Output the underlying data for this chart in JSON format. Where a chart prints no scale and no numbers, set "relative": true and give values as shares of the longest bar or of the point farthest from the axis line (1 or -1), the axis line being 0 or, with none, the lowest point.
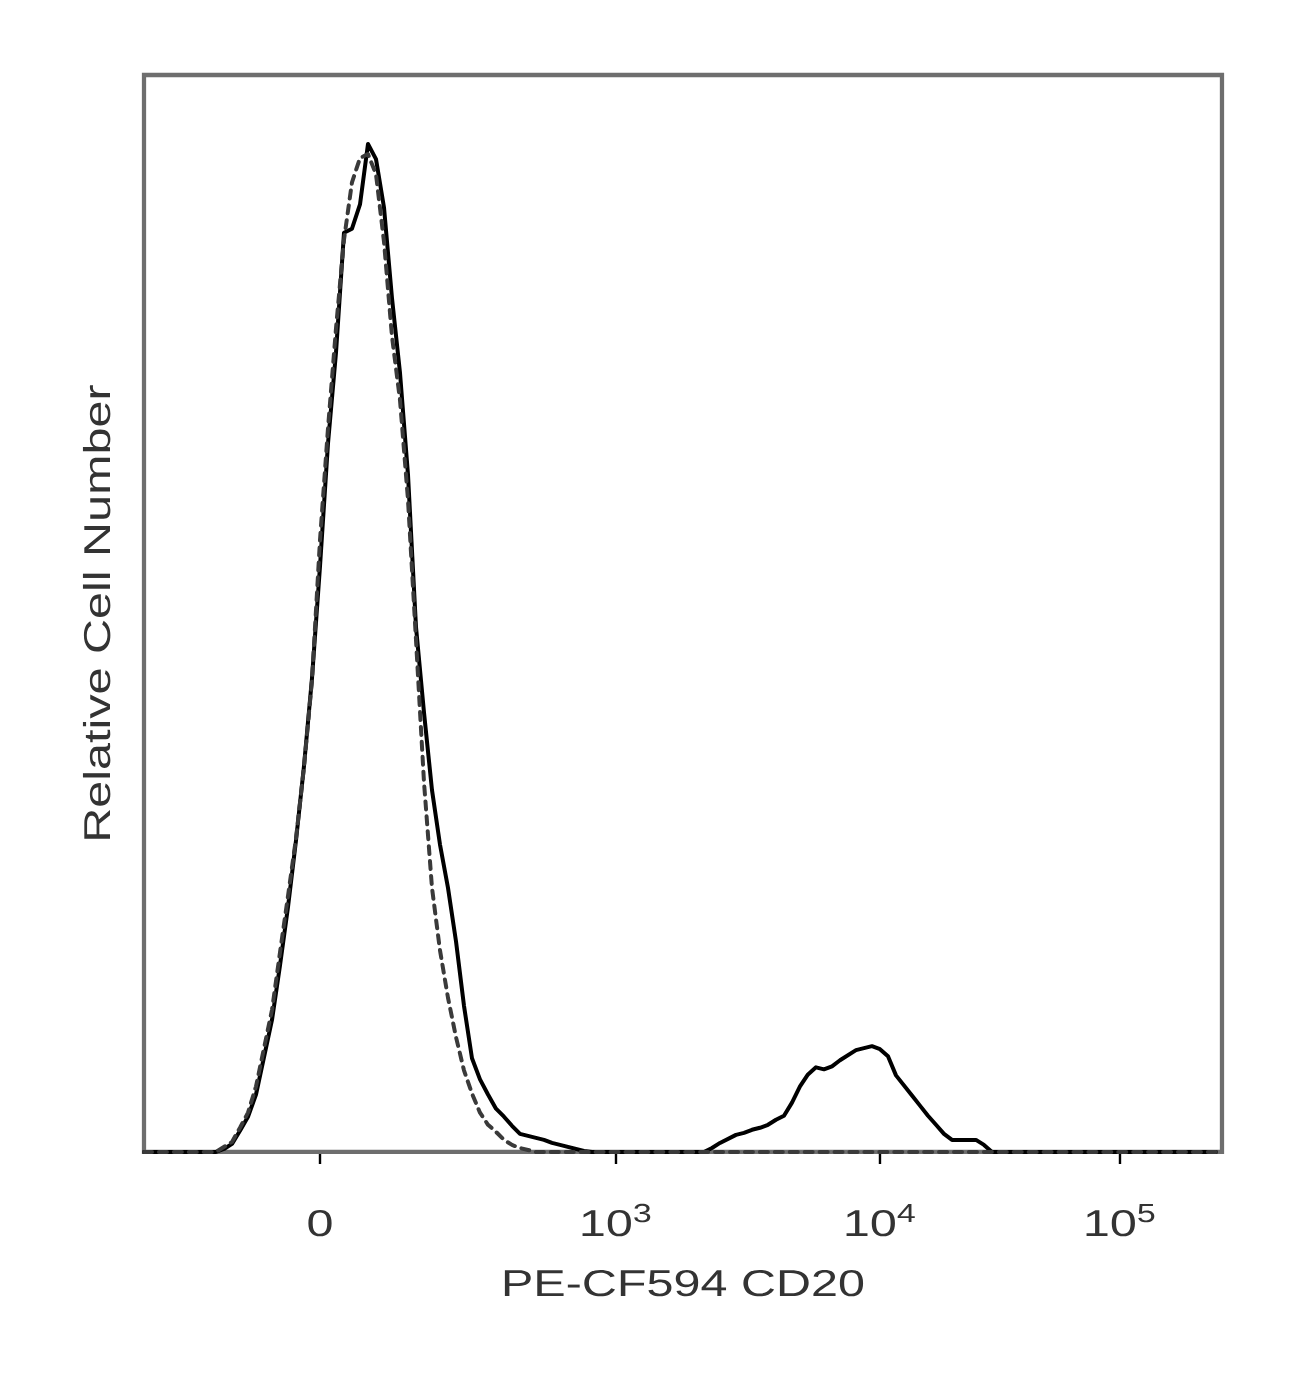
{
  "chart_data": {
    "type": "line",
    "relative": true,
    "xlabel": "PE-CF594 CD20",
    "ylabel": "Relative Cell Number",
    "tick_labels": "x",
    "categories": [
      null,
      null,
      null,
      null,
      null,
      null,
      null,
      null,
      null,
      null,
      null,
      null,
      null,
      null,
      null,
      null,
      null,
      null,
      null,
      null,
      null,
      null,
      "0",
      null,
      null,
      null,
      null,
      null,
      null,
      null,
      null,
      null,
      null,
      null,
      null,
      null,
      null,
      null,
      null,
      null,
      null,
      null,
      null,
      null,
      null,
      null,
      null,
      null,
      null,
      null,
      null,
      null,
      null,
      null,
      null,
      null,
      null,
      null,
      null,
      "10$^{3}$",
      null,
      null,
      null,
      null,
      null,
      null,
      null,
      null,
      null,
      null,
      null,
      null,
      null,
      null,
      null,
      null,
      null,
      null,
      null,
      null,
      null,
      null,
      null,
      null,
      null,
      null,
      null,
      null,
      null,
      null,
      null,
      null,
      "10$^{4}$",
      null,
      null,
      null,
      null,
      null,
      null,
      null,
      null,
      null,
      null,
      null,
      null,
      null,
      null,
      null,
      null,
      null,
      null,
      null,
      null,
      null,
      null,
      null,
      null,
      null,
      null,
      null,
      null,
      null,
      "10$^{5}$",
      null,
      null,
      null,
      null,
      null,
      null,
      null,
      null,
      null,
      null,
      null,
      null
    ],
    "series": [
      {
        "color": "#000000",
        "line_style": "solid",
        "values": [
          0,
          0,
          0,
          0,
          0,
          0,
          0,
          0,
          0,
          0,
          0.003,
          0.008,
          0.021,
          0.035,
          0.057,
          0.094,
          0.131,
          0.185,
          0.243,
          0.309,
          0.383,
          0.47,
          0.581,
          0.703,
          0.793,
          0.912,
          0.916,
          0.94,
          1,
          0.985,
          0.937,
          0.847,
          0.773,
          0.672,
          0.521,
          0.436,
          0.359,
          0.305,
          0.262,
          0.209,
          0.145,
          0.093,
          0.072,
          0.057,
          0.043,
          0.035,
          0.026,
          0.018,
          0.016,
          0.014,
          0.012,
          0.009,
          0.007,
          0.005,
          0.003,
          0.001,
          0,
          0,
          0,
          0,
          0,
          0,
          0,
          0,
          0,
          0,
          0,
          0,
          0,
          0,
          0,
          0.004,
          0.009,
          0.013,
          0.017,
          0.019,
          0.022,
          0.024,
          0.027,
          0.032,
          0.036,
          0.049,
          0.065,
          0.077,
          0.084,
          0.082,
          0.085,
          0.091,
          0.096,
          0.101,
          0.103,
          0.105,
          0.102,
          0.095,
          0.076,
          0.066,
          0.056,
          0.046,
          0.036,
          0.027,
          0.018,
          0.012,
          0.012,
          0.012,
          0.012,
          0.007,
          0,
          0,
          0,
          0,
          0,
          0,
          0,
          0,
          0,
          0,
          0,
          0,
          0,
          0,
          0,
          0,
          0,
          0,
          0,
          0,
          0,
          0,
          0,
          0,
          0,
          0,
          0,
          0,
          0
        ]
      },
      {
        "color": "#3a3a3a",
        "line_style": "dashed",
        "values": [
          0,
          0,
          0,
          0,
          0,
          0,
          0,
          0,
          0,
          0,
          0.005,
          0.01,
          0.024,
          0.039,
          0.065,
          0.103,
          0.141,
          0.198,
          0.254,
          0.311,
          0.382,
          0.468,
          0.607,
          0.718,
          0.817,
          0.905,
          0.962,
          0.986,
          0.99,
          0.97,
          0.903,
          0.809,
          0.746,
          0.647,
          0.508,
          0.367,
          0.262,
          0.2,
          0.153,
          0.114,
          0.081,
          0.058,
          0.039,
          0.027,
          0.02,
          0.012,
          0.007,
          0.004,
          0.002,
          0,
          0,
          0,
          0,
          0,
          0,
          0,
          0,
          0,
          0,
          0,
          0,
          0,
          0,
          0,
          0,
          0,
          0,
          0,
          0,
          0,
          0,
          0,
          0,
          0,
          0,
          0,
          0,
          0,
          0,
          0,
          0,
          0,
          0,
          0,
          0,
          0,
          0,
          0,
          0,
          0,
          0,
          0,
          0,
          0,
          0,
          0,
          0,
          0,
          0,
          0,
          0,
          0,
          0,
          0,
          0,
          0,
          0,
          0,
          0,
          0,
          0,
          0,
          0,
          0,
          0,
          0,
          0,
          0,
          0,
          0,
          0,
          0,
          0,
          0,
          0,
          0,
          0,
          0,
          0,
          0,
          0,
          0,
          0,
          0,
          0
        ]
      }
    ]
  }
}
